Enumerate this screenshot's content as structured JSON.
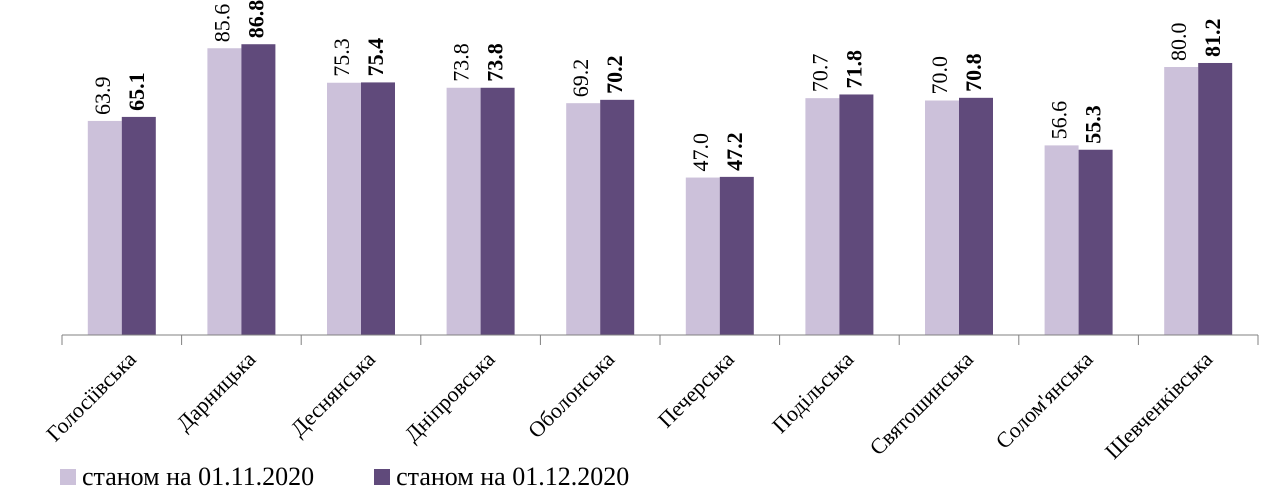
{
  "chart_data": {
    "type": "bar",
    "title": "",
    "xlabel": "",
    "ylabel": "",
    "ylim": [
      0,
      100
    ],
    "grid": false,
    "legend": "bottom-left",
    "categories": [
      "Голосіївська",
      "Дарницька",
      "Деснянська",
      "Дніпровська",
      "Оболонська",
      "Печерська",
      "Подільська",
      "Святошинська",
      "Солом'янська",
      "Шевченківська"
    ],
    "series": [
      {
        "name": "станом на 01.11.2020",
        "values": [
          63.9,
          85.6,
          75.3,
          73.8,
          69.2,
          47.0,
          70.7,
          70.0,
          56.6,
          80.0
        ],
        "labels": [
          "63.9",
          "85.6",
          "75.3",
          "73.8",
          "69.2",
          "47.0",
          "70.7",
          "70.0",
          "56.6",
          "80.0"
        ],
        "color": "#ccc1da",
        "bold": false
      },
      {
        "name": "станом на 01.12.2020",
        "values": [
          65.1,
          86.8,
          75.4,
          73.8,
          70.2,
          47.2,
          71.8,
          70.8,
          55.3,
          81.2
        ],
        "labels": [
          "65.1",
          "86.8",
          "75.4",
          "73.8",
          "70.2",
          "47.2",
          "71.8",
          "70.8",
          "55.3",
          "81.2"
        ],
        "color": "#604a7b",
        "bold": true
      }
    ]
  }
}
